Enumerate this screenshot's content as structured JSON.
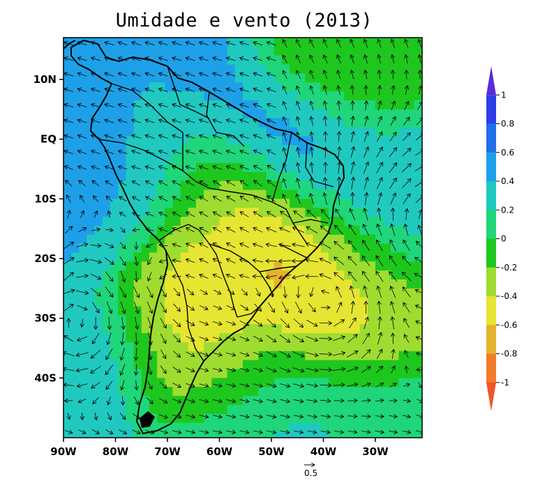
{
  "chart_data": {
    "type": "heatmap",
    "title": "Umidade e vento (2013)",
    "x_ticks": [
      "90W",
      "80W",
      "70W",
      "60W",
      "50W",
      "40W",
      "30W"
    ],
    "x_tick_values": [
      -90,
      -80,
      -70,
      -60,
      -50,
      -40,
      -30
    ],
    "y_ticks": [
      "10N",
      "EQ",
      "10S",
      "20S",
      "30S",
      "40S"
    ],
    "y_tick_values": [
      10,
      0,
      -10,
      -20,
      -30,
      -40
    ],
    "xlim": [
      -90,
      -21
    ],
    "ylim": [
      -50,
      17
    ],
    "colorbar": {
      "labels": [
        "1",
        "0.8",
        "0.6",
        "0.4",
        "0.2",
        "0",
        "-0.2",
        "-0.4",
        "-0.6",
        "-0.8",
        "-1"
      ],
      "levels": [
        1,
        0.8,
        0.6,
        0.4,
        0.2,
        0,
        -0.2,
        -0.4,
        -0.6,
        -0.8,
        -1
      ],
      "colors": [
        "#5b2bd6",
        "#2c3fe6",
        "#1f6fe8",
        "#1ea0e8",
        "#20c9c0",
        "#1fd67a",
        "#1ec71e",
        "#9fdc30",
        "#e5e532",
        "#e5b22f",
        "#f27a2b",
        "#f0542c"
      ]
    },
    "vector_reference": {
      "label": "0.5",
      "value": 0.5
    },
    "humidity_field": [
      {
        "lon": -82,
        "lat": -7,
        "value": 0.55
      },
      {
        "lon": -85,
        "lat": -2,
        "value": 0.45
      },
      {
        "lon": -83,
        "lat": -12,
        "value": 0.4
      },
      {
        "lon": -78,
        "lat": -34,
        "value": 0.55
      },
      {
        "lon": -83,
        "lat": -40,
        "value": 0.35
      },
      {
        "lon": -62,
        "lat": 7,
        "value": 0.45
      },
      {
        "lon": -49,
        "lat": -1,
        "value": 0.75
      },
      {
        "lon": -43,
        "lat": -3,
        "value": 0.65
      },
      {
        "lon": -35,
        "lat": -5,
        "value": 0.35
      },
      {
        "lon": -25,
        "lat": -7,
        "value": 0.4
      },
      {
        "lon": -30,
        "lat": -18,
        "value": 0.35
      },
      {
        "lon": -68,
        "lat": -6,
        "value": 0.2
      },
      {
        "lon": -76,
        "lat": -8,
        "value": 0.35
      },
      {
        "lon": -56,
        "lat": -10,
        "value": -0.45
      },
      {
        "lon": -62,
        "lat": -13,
        "value": -0.4
      },
      {
        "lon": -51,
        "lat": -18,
        "value": -0.85
      },
      {
        "lon": -47,
        "lat": -15,
        "value": -0.55
      },
      {
        "lon": -57,
        "lat": -21,
        "value": -0.5
      },
      {
        "lon": -40,
        "lat": -24,
        "value": -0.7
      },
      {
        "lon": -37,
        "lat": -28,
        "value": -0.55
      },
      {
        "lon": -31,
        "lat": -26,
        "value": -0.45
      },
      {
        "lon": -33,
        "lat": -32,
        "value": -0.5
      },
      {
        "lon": -68,
        "lat": -29,
        "value": -0.7
      },
      {
        "lon": -71,
        "lat": -34,
        "value": -0.55
      },
      {
        "lon": -67,
        "lat": -22,
        "value": -0.45
      },
      {
        "lon": -64,
        "lat": -35,
        "value": -0.5
      },
      {
        "lon": -55,
        "lat": -38,
        "value": -0.2
      },
      {
        "lon": -60,
        "lat": -46,
        "value": 0.25
      },
      {
        "lon": -37,
        "lat": -42,
        "value": 0.15
      },
      {
        "lon": -28,
        "lat": -45,
        "value": 0.2
      },
      {
        "lon": -45,
        "lat": -47,
        "value": 0.3
      },
      {
        "lon": -42,
        "lat": 10,
        "value": -0.25
      },
      {
        "lon": -30,
        "lat": 10,
        "value": -0.2
      }
    ],
    "wind_field": {
      "vortices": [
        {
          "lon": -87,
          "lat": -29,
          "gamma": -2.2,
          "sigma": 8
        },
        {
          "lon": -38,
          "lat": -27,
          "gamma": 1.6,
          "sigma": 7
        },
        {
          "lon": -20,
          "lat": -18,
          "gamma": -1.5,
          "sigma": 12
        }
      ],
      "description_note": "wind vectors (u,v) in the chart's units; reference vector 0.5"
    }
  }
}
